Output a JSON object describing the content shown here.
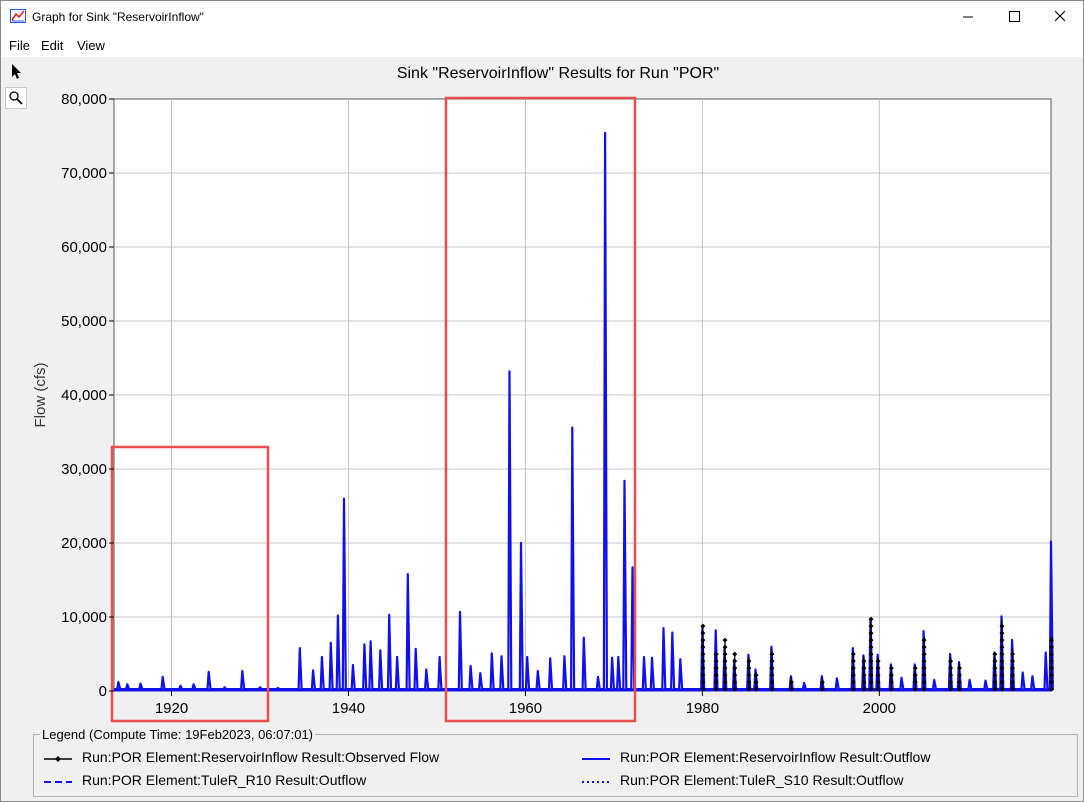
{
  "window": {
    "title": "Graph for Sink \"ReservoirInflow\"",
    "icons": {
      "app": "graph-app-icon",
      "minimize": "minimize-icon",
      "maximize": "maximize-icon",
      "close": "close-icon"
    }
  },
  "menu": [
    "File",
    "Edit",
    "View"
  ],
  "toolbar": [
    "pointer-icon",
    "magnifier-icon"
  ],
  "legend": {
    "title": "Legend (Compute Time: 19Feb2023, 06:07:01)",
    "items": [
      "Run:POR Element:ReservoirInflow Result:Observed Flow",
      "Run:POR Element:ReservoirInflow Result:Outflow",
      "Run:POR Element:TuleR_R10 Result:Outflow",
      "Run:POR Element:TuleR_S10 Result:Outflow"
    ]
  },
  "colors": {
    "outflow": "#1010ee",
    "observed": "#000000",
    "highlight": "#e85050",
    "grid": "#c4c4c4"
  },
  "chart_data": {
    "type": "line",
    "title": "Sink \"ReservoirInflow\" Results for Run \"POR\"",
    "ylabel": "Flow (cfs)",
    "xlabel": "",
    "xlim": [
      1913.5,
      2019.4
    ],
    "ylim": [
      0,
      80000
    ],
    "xticks": [
      1920,
      1940,
      1960,
      1980,
      2000
    ],
    "yticks": [
      0,
      10000,
      20000,
      30000,
      40000,
      50000,
      60000,
      70000,
      80000
    ],
    "ytick_labels": [
      "0",
      "10,000",
      "20,000",
      "30,000",
      "40,000",
      "50,000",
      "60,000",
      "70,000",
      "80,000"
    ],
    "grid": true,
    "legend_position": "bottom",
    "series": [
      {
        "name": "Run:POR Element:ReservoirInflow Result:Outflow",
        "style": "solid",
        "peaks": [
          [
            1914.0,
            1200
          ],
          [
            1915.0,
            900
          ],
          [
            1916.5,
            1000
          ],
          [
            1919.0,
            1900
          ],
          [
            1921.0,
            700
          ],
          [
            1922.5,
            900
          ],
          [
            1924.2,
            2600
          ],
          [
            1926.0,
            500
          ],
          [
            1928.0,
            2700
          ],
          [
            1930.0,
            500
          ],
          [
            1932.0,
            400
          ],
          [
            1934.5,
            5800
          ],
          [
            1936.0,
            2800
          ],
          [
            1937.0,
            4600
          ],
          [
            1938.0,
            6500
          ],
          [
            1938.8,
            10200
          ],
          [
            1939.5,
            26000
          ],
          [
            1940.5,
            3500
          ],
          [
            1941.8,
            6300
          ],
          [
            1942.5,
            6700
          ],
          [
            1943.6,
            5500
          ],
          [
            1944.6,
            10300
          ],
          [
            1945.5,
            4600
          ],
          [
            1946.7,
            15800
          ],
          [
            1947.6,
            5700
          ],
          [
            1948.8,
            2900
          ],
          [
            1950.3,
            4600
          ],
          [
            1952.6,
            10700
          ],
          [
            1953.8,
            3400
          ],
          [
            1954.9,
            2400
          ],
          [
            1956.2,
            5100
          ],
          [
            1957.3,
            4700
          ],
          [
            1958.2,
            43200
          ],
          [
            1959.5,
            20000
          ],
          [
            1960.2,
            4600
          ],
          [
            1961.4,
            2700
          ],
          [
            1962.8,
            4400
          ],
          [
            1964.4,
            4700
          ],
          [
            1965.3,
            35600
          ],
          [
            1966.6,
            7200
          ],
          [
            1968.2,
            1900
          ],
          [
            1969.0,
            75400
          ],
          [
            1969.8,
            4500
          ],
          [
            1970.5,
            4600
          ],
          [
            1971.2,
            28400
          ],
          [
            1972.1,
            16700
          ],
          [
            1973.4,
            4600
          ],
          [
            1974.3,
            4500
          ],
          [
            1975.6,
            8500
          ],
          [
            1976.6,
            7900
          ],
          [
            1977.5,
            4300
          ],
          [
            1980.0,
            8500
          ],
          [
            1981.5,
            8200
          ],
          [
            1982.5,
            5700
          ],
          [
            1983.6,
            4200
          ],
          [
            1985.2,
            4900
          ],
          [
            1986.0,
            2900
          ],
          [
            1987.8,
            6000
          ],
          [
            1990.0,
            2000
          ],
          [
            1991.5,
            1100
          ],
          [
            1993.5,
            2000
          ],
          [
            1995.2,
            1700
          ],
          [
            1997.0,
            5800
          ],
          [
            1998.2,
            4800
          ],
          [
            1999.0,
            9700
          ],
          [
            1999.8,
            4900
          ],
          [
            2001.3,
            3600
          ],
          [
            2002.5,
            1800
          ],
          [
            2004.0,
            3600
          ],
          [
            2005.0,
            8100
          ],
          [
            2006.2,
            1500
          ],
          [
            2008.0,
            5000
          ],
          [
            2009.0,
            3900
          ],
          [
            2010.2,
            1500
          ],
          [
            2012.0,
            1400
          ],
          [
            2013.0,
            5200
          ],
          [
            2013.8,
            10100
          ],
          [
            2015.0,
            6900
          ],
          [
            2016.2,
            2500
          ],
          [
            2017.3,
            2000
          ],
          [
            2018.8,
            5200
          ],
          [
            2019.5,
            7600
          ],
          [
            2020.0,
            20200
          ],
          [
            2021.0,
            5600
          ]
        ]
      },
      {
        "name": "Run:POR Element:ReservoirInflow Result:Observed Flow",
        "style": "line-with-markers",
        "peaks": [
          [
            1980.0,
            8900
          ],
          [
            1981.5,
            5000
          ],
          [
            1982.5,
            7000
          ],
          [
            1983.6,
            5000
          ],
          [
            1985.2,
            4600
          ],
          [
            1986.0,
            2500
          ],
          [
            1987.8,
            5700
          ],
          [
            1990.0,
            1800
          ],
          [
            1993.5,
            1800
          ],
          [
            1997.0,
            5000
          ],
          [
            1998.2,
            4800
          ],
          [
            1999.0,
            9900
          ],
          [
            1999.8,
            4600
          ],
          [
            2001.3,
            3200
          ],
          [
            2004.0,
            3200
          ],
          [
            2005.0,
            7300
          ],
          [
            2008.0,
            4600
          ],
          [
            2009.0,
            3700
          ],
          [
            2013.0,
            5000
          ],
          [
            2013.8,
            9700
          ],
          [
            2015.0,
            5700
          ],
          [
            2019.5,
            7300
          ]
        ]
      },
      {
        "name": "Run:POR Element:TuleR_R10 Result:Outflow",
        "style": "dashed",
        "peaks": []
      },
      {
        "name": "Run:POR Element:TuleR_S10 Result:Outflow",
        "style": "dotted",
        "peaks": []
      }
    ]
  }
}
